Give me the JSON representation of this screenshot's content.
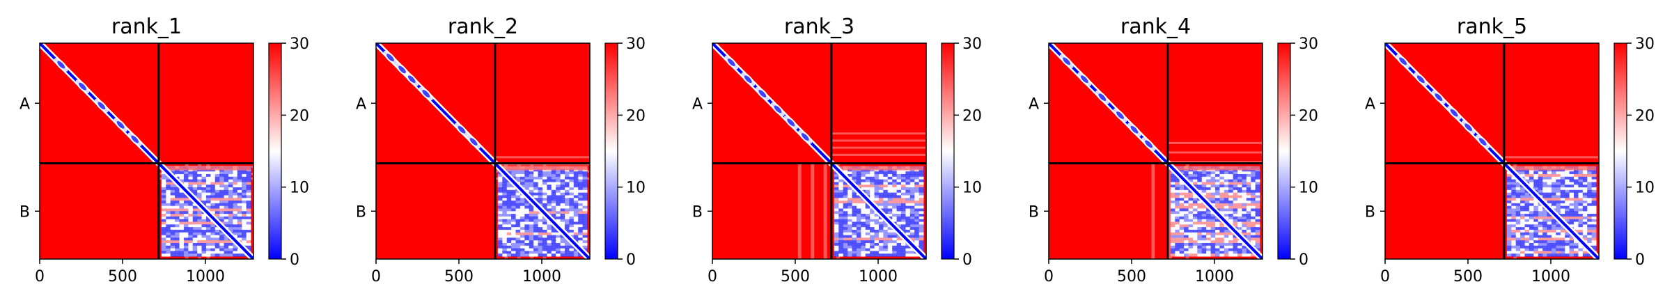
{
  "chart_data": [
    {
      "type": "heatmap",
      "title": "rank_1",
      "xlim": [
        0,
        1290
      ],
      "xticks": [
        0,
        500,
        1000
      ],
      "ytick_labels": [
        "A",
        "B"
      ],
      "chain_boundary": 718,
      "colorbar": {
        "min": 0,
        "max": 30,
        "ticks": [
          0,
          10,
          20,
          30
        ],
        "colormap": [
          "#0000ff",
          "#ffffff",
          "#ff0000"
        ]
      },
      "diagonal_blobs": [
        0.18,
        0.36,
        0.52,
        0.68,
        0.8
      ],
      "offdiag_stripes": [
        0.68,
        0.74,
        0.78
      ],
      "b_block_texture": 1.0
    },
    {
      "type": "heatmap",
      "title": "rank_2",
      "xlim": [
        0,
        1290
      ],
      "xticks": [
        0,
        500,
        1000
      ],
      "ytick_labels": [
        "A",
        "B"
      ],
      "chain_boundary": 718,
      "colorbar": {
        "min": 0,
        "max": 30,
        "ticks": [
          0,
          10,
          20,
          30
        ],
        "colormap": [
          "#0000ff",
          "#ffffff",
          "#ff0000"
        ]
      },
      "diagonal_blobs": [
        0.12,
        0.22,
        0.3,
        0.42,
        0.72,
        0.82
      ],
      "offdiag_stripes": [
        0.6,
        0.66,
        0.72,
        0.78
      ],
      "b_block_texture": 1.0
    },
    {
      "type": "heatmap",
      "title": "rank_3",
      "xlim": [
        0,
        1290
      ],
      "xticks": [
        0,
        500,
        1000
      ],
      "ytick_labels": [
        "A",
        "B"
      ],
      "chain_boundary": 718,
      "colorbar": {
        "min": 0,
        "max": 30,
        "ticks": [
          0,
          10,
          20,
          30
        ],
        "colormap": [
          "#0000ff",
          "#ffffff",
          "#ff0000"
        ]
      },
      "diagonal_blobs": [
        0.16,
        0.3,
        0.42,
        0.55,
        0.66,
        0.78
      ],
      "offdiag_stripes": [
        0.4,
        0.46,
        0.52,
        0.58
      ],
      "b_block_texture": 1.0
    },
    {
      "type": "heatmap",
      "title": "rank_4",
      "xlim": [
        0,
        1290
      ],
      "xticks": [
        0,
        500,
        1000
      ],
      "ytick_labels": [
        "A",
        "B"
      ],
      "chain_boundary": 718,
      "colorbar": {
        "min": 0,
        "max": 30,
        "ticks": [
          0,
          10,
          20,
          30
        ],
        "colormap": [
          "#0000ff",
          "#ffffff",
          "#ff0000"
        ]
      },
      "diagonal_blobs": [
        0.15,
        0.3,
        0.45,
        0.6,
        0.72,
        0.84
      ],
      "offdiag_stripes": [
        0.48,
        0.56,
        0.64
      ],
      "b_block_texture": 1.0
    },
    {
      "type": "heatmap",
      "title": "rank_5",
      "xlim": [
        0,
        1290
      ],
      "xticks": [
        0,
        500,
        1000
      ],
      "ytick_labels": [
        "A",
        "B"
      ],
      "chain_boundary": 718,
      "colorbar": {
        "min": 0,
        "max": 30,
        "ticks": [
          0,
          10,
          20,
          30
        ],
        "colormap": [
          "#0000ff",
          "#ffffff",
          "#ff0000"
        ]
      },
      "diagonal_blobs": [
        0.15,
        0.3,
        0.45,
        0.58,
        0.7,
        0.82
      ],
      "offdiag_stripes": [
        0.6
      ],
      "b_block_texture": 1.0
    }
  ]
}
